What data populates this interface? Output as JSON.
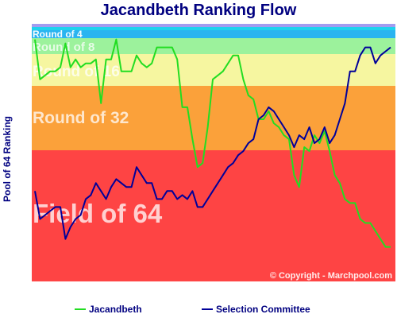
{
  "chart_data": {
    "type": "line",
    "title": "Jacandbeth Ranking Flow",
    "ylabel": "Pool of 64 Ranking",
    "ylim": [
      1,
      64
    ],
    "y_inverted": true,
    "x_count": 71,
    "bands": [
      {
        "label": "Round of 4",
        "from": 1,
        "to": 2,
        "color": "#2ab4f0"
      },
      {
        "label": "Round of 8",
        "from": 3,
        "to": 4,
        "color": "#9cf29c"
      },
      {
        "label": "Round of 16",
        "from": 5,
        "to": 8,
        "color": "#f6f6a0"
      },
      {
        "label": "Round of 32",
        "from": 9,
        "to": 16,
        "color": "#fba13a"
      },
      {
        "label": "Field of 64",
        "from": 17,
        "to": 32,
        "color": "#fe4444"
      }
    ],
    "extra_band_rows": [
      {
        "color": "#a29cf0"
      },
      {
        "color": "#1ed2ee"
      }
    ],
    "series": [
      {
        "name": "Jacandbeth",
        "color": "#22dd22",
        "values": [
          3,
          8,
          7.5,
          7,
          7,
          6.5,
          3.5,
          6.5,
          5.5,
          6.5,
          6,
          6,
          5.5,
          11,
          5.5,
          5.5,
          3,
          7,
          7,
          7,
          5,
          6,
          6.5,
          6,
          4,
          4,
          4,
          4,
          5.5,
          11.5,
          11.5,
          15.5,
          19,
          18.5,
          14,
          8,
          7.5,
          7,
          6,
          5,
          5,
          8,
          10,
          10.5,
          13,
          13,
          12,
          13.5,
          14,
          15,
          15.5,
          20,
          21.5,
          16.5,
          17,
          15,
          16,
          14.5,
          17,
          20,
          21,
          23,
          23.5,
          23.5,
          25.5,
          26,
          26,
          27,
          28,
          29,
          29
        ]
      },
      {
        "name": "Selection Committee",
        "color": "#000099",
        "values": [
          22,
          25.5,
          25,
          24.5,
          24,
          24,
          28,
          26.5,
          25.5,
          25,
          23,
          22.5,
          21,
          22,
          23,
          21.5,
          20.5,
          21,
          21.5,
          21.5,
          19,
          20,
          21,
          21,
          23,
          23,
          22,
          22,
          23,
          22.5,
          23,
          22,
          24,
          24,
          23,
          22,
          21,
          20,
          19,
          18.5,
          17.5,
          17,
          16,
          15.5,
          13,
          12.5,
          11.5,
          12,
          13,
          14,
          15,
          16.5,
          15,
          15.5,
          14,
          16,
          15.5,
          14,
          16,
          15,
          13,
          11,
          7,
          7,
          5,
          4,
          4,
          6,
          5,
          4.5,
          4
        ]
      }
    ],
    "copyright": "© Copyright - Marchpool.com"
  }
}
